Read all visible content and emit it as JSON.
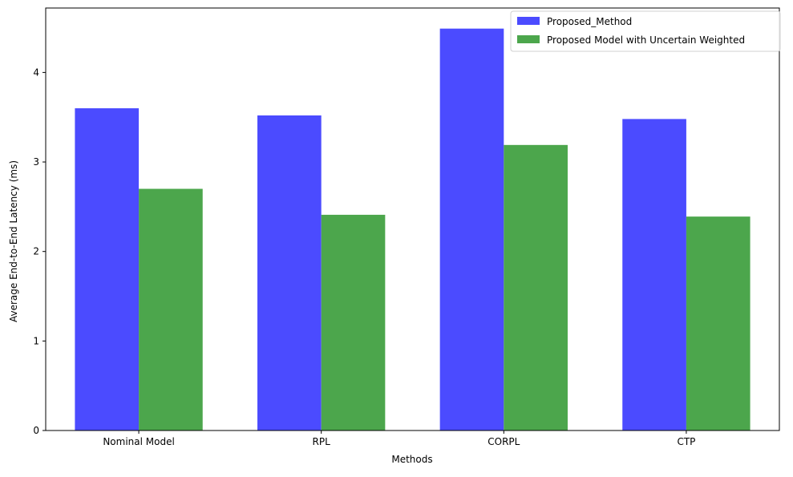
{
  "chart_data": {
    "type": "bar",
    "title": "",
    "xlabel": "Methods",
    "ylabel": "Average End-to-End Latency (ms)",
    "categories": [
      "Nominal Model",
      "RPL",
      "CORPL",
      "CTP"
    ],
    "series": [
      {
        "name": "Proposed_Method",
        "values": [
          3.6,
          3.52,
          4.49,
          3.48
        ],
        "color": "#4b4bff"
      },
      {
        "name": "Proposed Model with Uncertain Weighted",
        "values": [
          2.7,
          2.41,
          3.19,
          2.39
        ],
        "color": "#4ca64c"
      }
    ],
    "ylim": [
      0,
      4.72
    ],
    "yticks": [
      "0",
      "1",
      "2",
      "3",
      "4"
    ],
    "grid": false,
    "legend_position": "top-right"
  }
}
